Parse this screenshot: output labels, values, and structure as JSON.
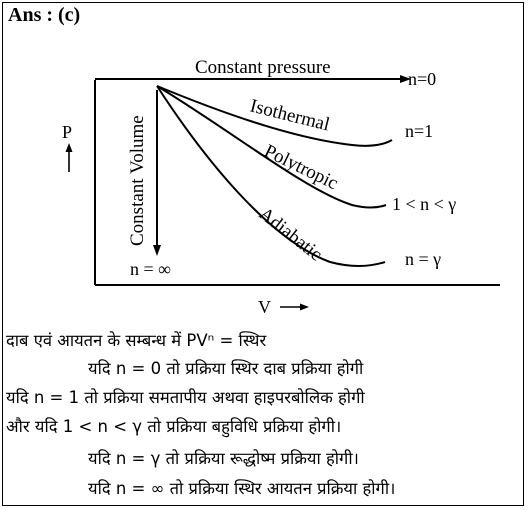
{
  "answer_label": "Ans : (c)",
  "diagram": {
    "y_axis_label": "P",
    "x_axis_label": "V",
    "curves": [
      {
        "name": "Constant pressure",
        "n_label": "n=0"
      },
      {
        "name": "Isothermal",
        "n_label": "n=1"
      },
      {
        "name": "Polytropic",
        "n_label": "1 < n < γ"
      },
      {
        "name": "Adiabatic",
        "n_label": "n = γ"
      },
      {
        "name": "Constant Volume",
        "n_label": "n = ∞"
      }
    ]
  },
  "explanation": [
    "दाब एवं आयतन के सम्बन्ध में PVⁿ = स्थिर",
    "यदि n = 0 तो प्रक्रिया स्थिर दाब प्रक्रिया होगी",
    "यदि n = 1 तो प्रक्रिया समतापीय अथवा हाइपरबोलिक होगी",
    "और यदि  1 < n < γ तो प्रक्रिया बहुविधि प्रक्रिया होगी।",
    "यदि n = γ तो प्रक्रिया रूद्धोष्म प्रक्रिया होगी।",
    "यदि n = ∞ तो प्रक्रिया स्थिर आयतन प्रक्रिया होगी।"
  ]
}
